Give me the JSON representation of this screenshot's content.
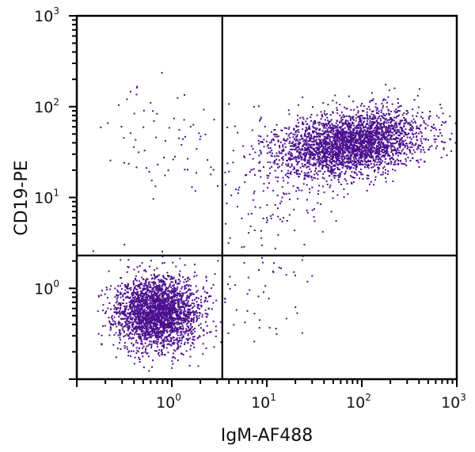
{
  "chart_data": {
    "type": "scatter",
    "title": "",
    "xlabel": "IgM-AF488",
    "ylabel": "CD19-PE",
    "xscale": "log",
    "yscale": "log",
    "xlim": [
      0.1,
      1000
    ],
    "ylim": [
      0.1,
      1000
    ],
    "x_ticks": [
      {
        "value": 1,
        "base": "10",
        "exp": "0"
      },
      {
        "value": 10,
        "base": "10",
        "exp": "1"
      },
      {
        "value": 100,
        "base": "10",
        "exp": "2"
      },
      {
        "value": 1000,
        "base": "10",
        "exp": "3"
      }
    ],
    "y_ticks": [
      {
        "value": 1,
        "base": "10",
        "exp": "0"
      },
      {
        "value": 10,
        "base": "10",
        "exp": "1"
      },
      {
        "value": 100,
        "base": "10",
        "exp": "2"
      },
      {
        "value": 1000,
        "base": "10",
        "exp": "3"
      }
    ],
    "grid": false,
    "legend": null,
    "quadrant_gates": {
      "x": 3.4,
      "y": 2.3
    },
    "point_color": "#4b0f8f",
    "populations": [
      {
        "name": "IgM-negative CD19-negative",
        "quadrant": "lower-left",
        "center_x": 0.7,
        "center_y": 0.55,
        "spread_log_x": 0.22,
        "spread_log_y": 0.2,
        "count": 2600,
        "seed": 11
      },
      {
        "name": "IgM-positive CD19-positive",
        "quadrant": "upper-right",
        "center_x": 75,
        "center_y": 40,
        "spread_log_x": 0.38,
        "spread_log_y": 0.17,
        "count": 2900,
        "seed": 23,
        "tilt": 0.12
      },
      {
        "name": "sparse upper-left",
        "quadrant": "upper-left",
        "center_x": 0.9,
        "center_y": 45,
        "spread_log_x": 0.3,
        "spread_log_y": 0.3,
        "count": 70,
        "seed": 37
      },
      {
        "name": "sparse lower-right",
        "quadrant": "lower-right",
        "center_x": 8,
        "center_y": 0.9,
        "spread_log_x": 0.3,
        "spread_log_y": 0.3,
        "count": 45,
        "seed": 51
      },
      {
        "name": "transitional upper-right",
        "quadrant": "upper-right",
        "center_x": 12,
        "center_y": 12,
        "spread_log_x": 0.3,
        "spread_log_y": 0.35,
        "count": 160,
        "seed": 67
      }
    ],
    "quadrant_labels": []
  }
}
